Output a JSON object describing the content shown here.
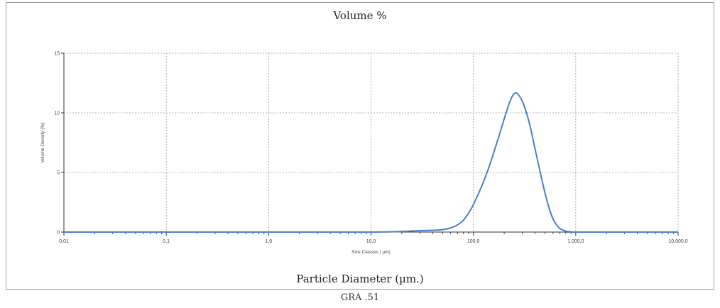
{
  "figure": {
    "top_title": "Volume %",
    "bottom_title": "Particle Diameter (µm.)",
    "caption": "GRA .51"
  },
  "chart_data": {
    "type": "line",
    "x_scale": "log",
    "xlim": [
      0.01,
      10000
    ],
    "ylim": [
      0,
      15
    ],
    "x_tick_values": [
      0.01,
      0.1,
      1,
      10,
      100,
      1000,
      10000
    ],
    "x_tick_labels": [
      "0,01",
      "0,1",
      "1,0",
      "10,0",
      "100,0",
      "1.000,0",
      "10.000,0"
    ],
    "y_tick_values": [
      0,
      5,
      10,
      15
    ],
    "y_tick_labels": [
      "0",
      "5",
      "10",
      "15"
    ],
    "xlabel": "Size Classes ( µm)",
    "ylabel": "Volume Density (%)",
    "grid": true,
    "series": [
      {
        "color": "#4a7fc8",
        "points": [
          [
            0.01,
            0
          ],
          [
            1,
            0
          ],
          [
            10,
            0
          ],
          [
            20,
            0.05
          ],
          [
            30,
            0.12
          ],
          [
            40,
            0.15
          ],
          [
            50,
            0.2
          ],
          [
            60,
            0.35
          ],
          [
            70,
            0.6
          ],
          [
            80,
            1.0
          ],
          [
            90,
            1.6
          ],
          [
            100,
            2.3
          ],
          [
            120,
            3.8
          ],
          [
            140,
            5.3
          ],
          [
            160,
            6.8
          ],
          [
            180,
            8.2
          ],
          [
            200,
            9.5
          ],
          [
            220,
            10.6
          ],
          [
            240,
            11.4
          ],
          [
            255,
            11.65
          ],
          [
            270,
            11.6
          ],
          [
            300,
            11.0
          ],
          [
            330,
            10.0
          ],
          [
            360,
            8.8
          ],
          [
            400,
            7.0
          ],
          [
            450,
            5.0
          ],
          [
            500,
            3.3
          ],
          [
            550,
            2.0
          ],
          [
            600,
            1.1
          ],
          [
            650,
            0.6
          ],
          [
            700,
            0.3
          ],
          [
            800,
            0.08
          ],
          [
            900,
            0.02
          ],
          [
            1000,
            0
          ],
          [
            10000,
            0
          ]
        ]
      }
    ]
  }
}
